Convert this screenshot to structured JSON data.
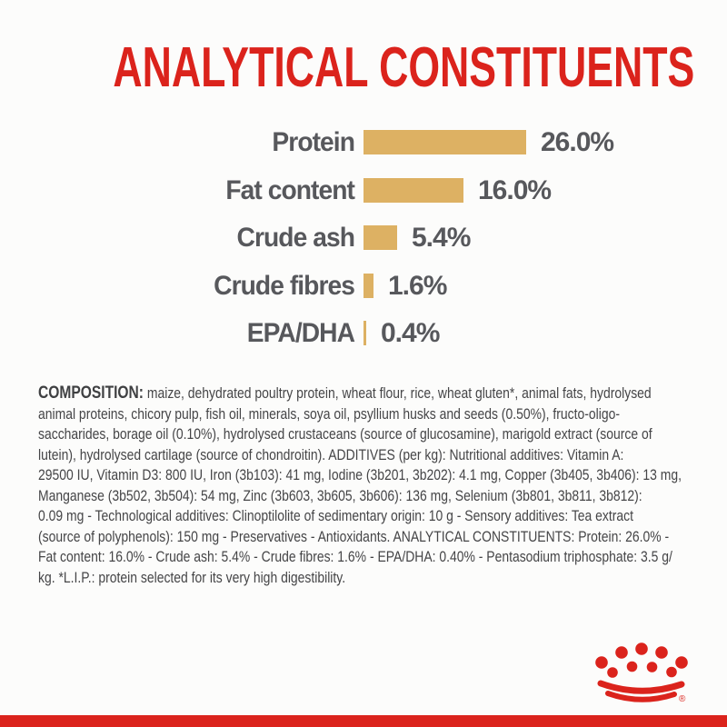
{
  "title": {
    "text": "ANALYTICAL CONSTITUENTS",
    "color": "#DB231C"
  },
  "chart_data": {
    "type": "bar",
    "orientation": "horizontal",
    "title": "ANALYTICAL CONSTITUENTS",
    "categories": [
      "Protein",
      "Fat content",
      "Crude ash",
      "Crude fibres",
      "EPA/DHA"
    ],
    "values": [
      26.0,
      16.0,
      5.4,
      1.6,
      0.4
    ],
    "value_labels": [
      "26.0%",
      "16.0%",
      "5.4%",
      "1.6%",
      "0.4%"
    ],
    "unit": "%",
    "xlim": [
      0,
      26
    ],
    "grid": false,
    "legend": false,
    "bar_color": "#DDB163",
    "label_color": "#57585C"
  },
  "composition": {
    "heading": "COMPOSITION:",
    "lines": [
      " maize, dehydrated poultry protein, wheat flour, rice, wheat gluten*, animal fats, hydrolysed",
      "animal proteins, chicory pulp, fish oil, minerals, soya oil, psyllium husks and seeds (0.50%), fructo-oligo-",
      "saccharides, borage oil (0.10%), hydrolysed crustaceans (source of glucosamine), marigold extract (source of",
      "lutein), hydrolysed cartilage (source of chondroitin). ADDITIVES (per kg): Nutritional additives: Vitamin A:",
      "29500 IU, Vitamin D3: 800 IU, Iron (3b103): 41 mg, Iodine (3b201, 3b202): 4.1 mg, Copper (3b405, 3b406): 13 mg,",
      "Manganese (3b502, 3b504): 54 mg, Zinc (3b603, 3b605, 3b606): 136 mg, Selenium (3b801, 3b811, 3b812):",
      "0.09 mg - Technological additives: Clinoptilolite of sedimentary origin: 10 g - Sensory additives: Tea extract",
      "(source of polyphenols): 150 mg - Preservatives - Antioxidants. ANALYTICAL CONSTITUENTS: Protein: 26.0% -",
      "Fat content: 16.0% - Crude ash: 5.4% - Crude fibres: 1.6% - EPA/DHA: 0.40% - Pentasodium triphosphate: 3.5 g/",
      "kg. *L.I.P.: protein selected for its very high digestibility."
    ],
    "text_color": "#454547"
  },
  "logo": {
    "name": "royal-canin-crown",
    "color": "#DB231C",
    "registered_mark": "®"
  },
  "footer": {
    "band_color": "#DB231C"
  }
}
